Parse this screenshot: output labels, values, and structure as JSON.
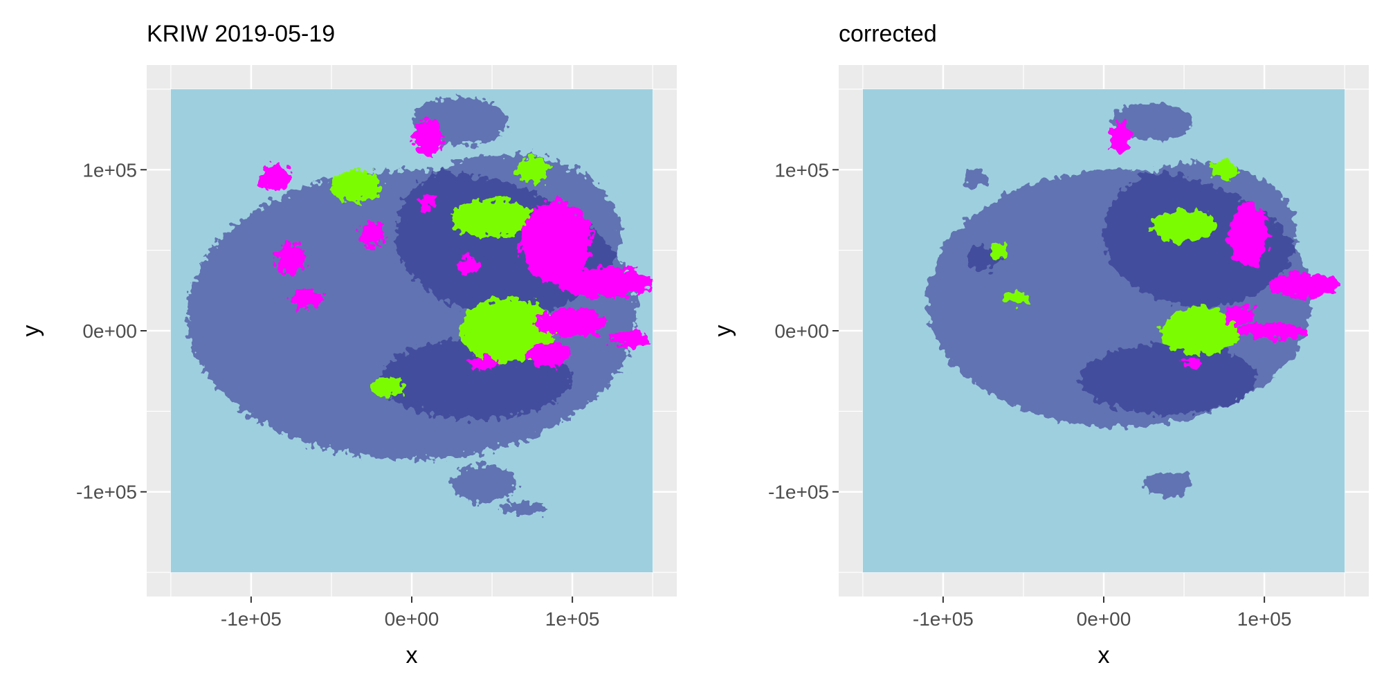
{
  "chart_data": [
    {
      "type": "heatmap",
      "title": "KRIW 2019-05-19",
      "xlabel": "x",
      "ylabel": "y",
      "xlim": [
        -165000,
        165000
      ],
      "ylim": [
        -165000,
        165000
      ],
      "data_extent": {
        "x": [
          -150000,
          150000
        ],
        "y": [
          -150000,
          150000
        ]
      },
      "x_ticks": [
        {
          "value": -100000,
          "label": "-1e+05"
        },
        {
          "value": 0,
          "label": "0e+00"
        },
        {
          "value": 100000,
          "label": "1e+05"
        }
      ],
      "y_ticks": [
        {
          "value": -100000,
          "label": "-1e+05"
        },
        {
          "value": 0,
          "label": "0e+00"
        },
        {
          "value": 100000,
          "label": "1e+05"
        }
      ],
      "grid": true,
      "background_value_color": "#9ecfdf",
      "regions": [
        {
          "x": 90000,
          "y": 55000,
          "rx": 22000,
          "ry": 26000,
          "level": 3
        },
        {
          "x": 120000,
          "y": 30000,
          "rx": 30000,
          "ry": 9000,
          "level": 3
        },
        {
          "x": 100000,
          "y": 5000,
          "rx": 22000,
          "ry": 9000,
          "level": 3
        },
        {
          "x": 135000,
          "y": -5000,
          "rx": 12000,
          "ry": 5000,
          "level": 3
        },
        {
          "x": 85000,
          "y": -15000,
          "rx": 14000,
          "ry": 8000,
          "level": 3
        },
        {
          "x": 10000,
          "y": 120000,
          "rx": 9000,
          "ry": 12000,
          "level": 3
        },
        {
          "x": -85000,
          "y": 95000,
          "rx": 10000,
          "ry": 8000,
          "level": 3
        },
        {
          "x": -75000,
          "y": 45000,
          "rx": 9000,
          "ry": 10000,
          "level": 3
        },
        {
          "x": -65000,
          "y": 20000,
          "rx": 10000,
          "ry": 6000,
          "level": 3
        },
        {
          "x": -25000,
          "y": 60000,
          "rx": 8000,
          "ry": 8000,
          "level": 3
        },
        {
          "x": 35000,
          "y": 40000,
          "rx": 7000,
          "ry": 6000,
          "level": 3
        },
        {
          "x": 10000,
          "y": 80000,
          "rx": 6000,
          "ry": 5000,
          "level": 3
        },
        {
          "x": 45000,
          "y": -20000,
          "rx": 8000,
          "ry": 4000,
          "level": 3
        },
        {
          "x": 75000,
          "y": 100000,
          "rx": 10000,
          "ry": 8000,
          "level": 2
        },
        {
          "x": 50000,
          "y": 70000,
          "rx": 25000,
          "ry": 12000,
          "level": 2
        },
        {
          "x": -35000,
          "y": 90000,
          "rx": 16000,
          "ry": 10000,
          "level": 2
        },
        {
          "x": 60000,
          "y": 0,
          "rx": 30000,
          "ry": 20000,
          "level": 2
        },
        {
          "x": -15000,
          "y": -35000,
          "rx": 10000,
          "ry": 6000,
          "level": 2
        },
        {
          "x": 0,
          "y": 10000,
          "rx": 140000,
          "ry": 90000,
          "level": 1
        },
        {
          "x": 60000,
          "y": 60000,
          "rx": 70000,
          "ry": 50000,
          "level": 1
        },
        {
          "x": 40000,
          "y": -30000,
          "rx": 60000,
          "ry": 25000,
          "level": 1
        },
        {
          "x": 30000,
          "y": 130000,
          "rx": 30000,
          "ry": 15000,
          "level": 1
        },
        {
          "x": 45000,
          "y": -95000,
          "rx": 20000,
          "ry": 12000,
          "level": 1
        },
        {
          "x": 70000,
          "y": -110000,
          "rx": 15000,
          "ry": 4000,
          "level": 1
        }
      ]
    },
    {
      "type": "heatmap",
      "title": "corrected",
      "xlabel": "x",
      "ylabel": "y",
      "xlim": [
        -165000,
        165000
      ],
      "ylim": [
        -165000,
        165000
      ],
      "data_extent": {
        "x": [
          -150000,
          150000
        ],
        "y": [
          -150000,
          150000
        ]
      },
      "x_ticks": [
        {
          "value": -100000,
          "label": "-1e+05"
        },
        {
          "value": 0,
          "label": "0e+00"
        },
        {
          "value": 100000,
          "label": "1e+05"
        }
      ],
      "y_ticks": [
        {
          "value": -100000,
          "label": "-1e+05"
        },
        {
          "value": 0,
          "label": "0e+00"
        },
        {
          "value": 100000,
          "label": "1e+05"
        }
      ],
      "grid": true,
      "background_value_color": "#9ecfdf",
      "regions": [
        {
          "x": 90000,
          "y": 60000,
          "rx": 12000,
          "ry": 20000,
          "level": 3
        },
        {
          "x": 125000,
          "y": 28000,
          "rx": 22000,
          "ry": 8000,
          "level": 3
        },
        {
          "x": 105000,
          "y": 0,
          "rx": 22000,
          "ry": 5000,
          "level": 3
        },
        {
          "x": 85000,
          "y": 10000,
          "rx": 10000,
          "ry": 6000,
          "level": 3
        },
        {
          "x": 10000,
          "y": 120000,
          "rx": 7000,
          "ry": 10000,
          "level": 3
        },
        {
          "x": 55000,
          "y": -20000,
          "rx": 6000,
          "ry": 3000,
          "level": 3
        },
        {
          "x": 75000,
          "y": 100000,
          "rx": 8000,
          "ry": 6000,
          "level": 2
        },
        {
          "x": 50000,
          "y": 65000,
          "rx": 20000,
          "ry": 10000,
          "level": 2
        },
        {
          "x": 60000,
          "y": 0,
          "rx": 25000,
          "ry": 15000,
          "level": 2
        },
        {
          "x": -65000,
          "y": 50000,
          "rx": 6000,
          "ry": 5000,
          "level": 2
        },
        {
          "x": -55000,
          "y": 20000,
          "rx": 8000,
          "ry": 4000,
          "level": 2
        },
        {
          "x": 10000,
          "y": 20000,
          "rx": 120000,
          "ry": 80000,
          "level": 1
        },
        {
          "x": 60000,
          "y": 60000,
          "rx": 60000,
          "ry": 45000,
          "level": 1
        },
        {
          "x": 40000,
          "y": -30000,
          "rx": 55000,
          "ry": 22000,
          "level": 1
        },
        {
          "x": 30000,
          "y": 130000,
          "rx": 25000,
          "ry": 12000,
          "level": 1
        },
        {
          "x": -80000,
          "y": 95000,
          "rx": 8000,
          "ry": 6000,
          "level": 1
        },
        {
          "x": -75000,
          "y": 45000,
          "rx": 10000,
          "ry": 8000,
          "level": 1
        },
        {
          "x": 40000,
          "y": -95000,
          "rx": 15000,
          "ry": 8000,
          "level": 1
        }
      ]
    }
  ]
}
